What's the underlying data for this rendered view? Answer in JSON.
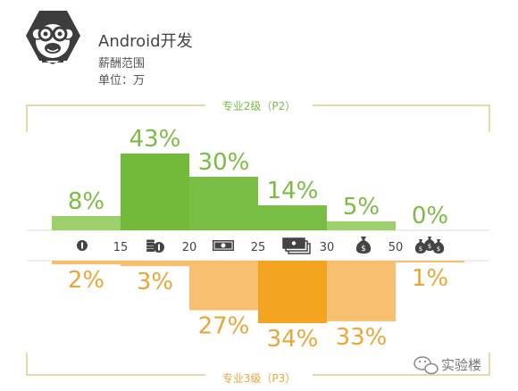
{
  "header": {
    "title": "Android开发",
    "subtitle": "薪酬范围",
    "unit_line": "单位：万"
  },
  "watermark": {
    "text": "实验楼",
    "icon": "wechat-icon"
  },
  "colors": {
    "p2_main": "#72bb3a",
    "p2_light": "#9bd06d",
    "p2_text": "#7dbb45",
    "p3_main": "#f4a520",
    "p3_light": "#f7c070",
    "p3_text": "#e7a83a",
    "frame": "#d8cf8e",
    "axis": "#e2dfd2"
  },
  "chart_data": {
    "type": "bar",
    "x_ticks": [
      "15",
      "20",
      "25",
      "30",
      "50"
    ],
    "bin_icons": [
      "coin-icon",
      "coin-stack-icon",
      "banknote-icon",
      "banknote-stack-icon",
      "money-bag-icon",
      "money-bags-icon"
    ],
    "series": [
      {
        "name": "专业2级（P2）",
        "values": [
          8,
          43,
          30,
          14,
          5,
          0
        ],
        "labels": [
          "8%",
          "43%",
          "30%",
          "14%",
          "5%",
          "0%"
        ]
      },
      {
        "name": "专业3级（P3）",
        "values": [
          2,
          3,
          27,
          34,
          33,
          1
        ],
        "labels": [
          "2%",
          "3%",
          "27%",
          "34%",
          "33%",
          "1%"
        ]
      }
    ]
  }
}
